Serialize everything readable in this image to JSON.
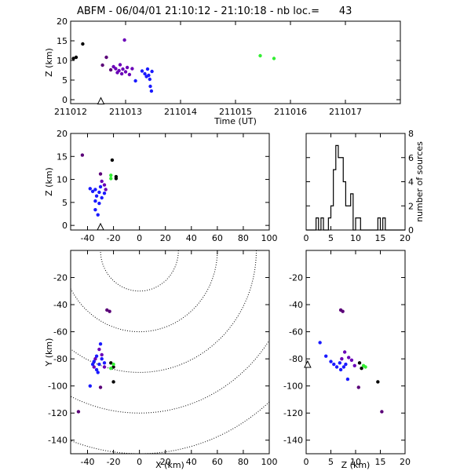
{
  "title": "ABFM - 06/04/01 21:10:12 - 21:10:18 - nb loc.=      43",
  "colors": {
    "earliest": "#000000",
    "early": "#5a0078",
    "middle": "#6a00b8",
    "late": "#1a1aff",
    "latest": "#33ee33"
  },
  "chart_data": [
    {
      "type": "scatter",
      "name": "time-height",
      "xlabel": "Time (UT)",
      "ylabel": "Z (km)",
      "xlim": [
        211012,
        211018
      ],
      "ylim": [
        -1,
        20
      ],
      "xticks": [
        211012,
        211013,
        211014,
        211015,
        211016,
        211017
      ],
      "yticks": [
        0,
        5,
        10,
        15,
        20
      ],
      "station_marker": {
        "x": 211012.55,
        "y": -0.3
      },
      "points": [
        {
          "x": 211012.05,
          "y": 10.5,
          "c": "earliest"
        },
        {
          "x": 211012.1,
          "y": 10.8,
          "c": "earliest"
        },
        {
          "x": 211012.22,
          "y": 14.2,
          "c": "earliest"
        },
        {
          "x": 211012.58,
          "y": 8.8,
          "c": "early"
        },
        {
          "x": 211012.65,
          "y": 10.8,
          "c": "early"
        },
        {
          "x": 211012.73,
          "y": 7.6,
          "c": "early"
        },
        {
          "x": 211012.78,
          "y": 8.4,
          "c": "middle"
        },
        {
          "x": 211012.82,
          "y": 7.9,
          "c": "middle"
        },
        {
          "x": 211012.85,
          "y": 6.9,
          "c": "middle"
        },
        {
          "x": 211012.88,
          "y": 7.4,
          "c": "middle"
        },
        {
          "x": 211012.9,
          "y": 8.9,
          "c": "middle"
        },
        {
          "x": 211012.93,
          "y": 6.6,
          "c": "middle"
        },
        {
          "x": 211012.95,
          "y": 7.8,
          "c": "middle"
        },
        {
          "x": 211012.98,
          "y": 15.2,
          "c": "middle"
        },
        {
          "x": 211013.0,
          "y": 7.1,
          "c": "middle"
        },
        {
          "x": 211013.03,
          "y": 8.2,
          "c": "middle"
        },
        {
          "x": 211013.07,
          "y": 6.4,
          "c": "middle"
        },
        {
          "x": 211013.12,
          "y": 7.9,
          "c": "middle"
        },
        {
          "x": 211013.18,
          "y": 4.8,
          "c": "late"
        },
        {
          "x": 211013.3,
          "y": 7.3,
          "c": "late"
        },
        {
          "x": 211013.35,
          "y": 6.6,
          "c": "late"
        },
        {
          "x": 211013.38,
          "y": 5.9,
          "c": "late"
        },
        {
          "x": 211013.4,
          "y": 7.8,
          "c": "late"
        },
        {
          "x": 211013.42,
          "y": 6.2,
          "c": "late"
        },
        {
          "x": 211013.44,
          "y": 5.2,
          "c": "late"
        },
        {
          "x": 211013.45,
          "y": 3.4,
          "c": "late"
        },
        {
          "x": 211013.47,
          "y": 2.2,
          "c": "late"
        },
        {
          "x": 211013.48,
          "y": 7.2,
          "c": "late"
        },
        {
          "x": 211015.45,
          "y": 11.2,
          "c": "latest"
        },
        {
          "x": 211015.7,
          "y": 10.5,
          "c": "latest"
        }
      ]
    },
    {
      "type": "scatter",
      "name": "x-height",
      "xlabel": "",
      "ylabel": "Z (km)",
      "xlim": [
        -53,
        100
      ],
      "ylim": [
        -1,
        20
      ],
      "xticks": [
        -40,
        -20,
        0,
        20,
        40,
        60,
        80,
        100
      ],
      "yticks": [
        0,
        5,
        10,
        15,
        20
      ],
      "station_marker": {
        "x": -30,
        "y": -0.3
      },
      "points": [
        {
          "x": -21,
          "y": 14.2,
          "c": "earliest"
        },
        {
          "x": -18,
          "y": 10.6,
          "c": "earliest"
        },
        {
          "x": -18,
          "y": 10.2,
          "c": "earliest"
        },
        {
          "x": -44,
          "y": 15.3,
          "c": "early"
        },
        {
          "x": -30,
          "y": 11.2,
          "c": "early"
        },
        {
          "x": -27,
          "y": 8.8,
          "c": "middle"
        },
        {
          "x": -38,
          "y": 8.0,
          "c": "late"
        },
        {
          "x": -36,
          "y": 7.4,
          "c": "late"
        },
        {
          "x": -34,
          "y": 7.8,
          "c": "late"
        },
        {
          "x": -33,
          "y": 6.4,
          "c": "late"
        },
        {
          "x": -31,
          "y": 7.2,
          "c": "late"
        },
        {
          "x": -30,
          "y": 8.4,
          "c": "late"
        },
        {
          "x": -29,
          "y": 6.0,
          "c": "late"
        },
        {
          "x": -27,
          "y": 7.0,
          "c": "late"
        },
        {
          "x": -34,
          "y": 5.3,
          "c": "late"
        },
        {
          "x": -31,
          "y": 4.8,
          "c": "late"
        },
        {
          "x": -34,
          "y": 3.4,
          "c": "late"
        },
        {
          "x": -32,
          "y": 2.3,
          "c": "late"
        },
        {
          "x": -26,
          "y": 7.8,
          "c": "middle"
        },
        {
          "x": -29,
          "y": 9.6,
          "c": "middle"
        },
        {
          "x": -22,
          "y": 10.9,
          "c": "latest"
        },
        {
          "x": -22,
          "y": 10.2,
          "c": "latest"
        }
      ]
    },
    {
      "type": "bar",
      "name": "histogram",
      "xlabel": "",
      "ylabel": "number of sources",
      "xlim": [
        0,
        20
      ],
      "ylim": [
        0,
        8
      ],
      "xticks": [
        0,
        5,
        10,
        15,
        20
      ],
      "yticks": [
        0,
        2,
        4,
        6,
        8
      ],
      "bin_width": 0.5,
      "bin_edges_start": 0,
      "counts": [
        0,
        0,
        0,
        0,
        1,
        0,
        1,
        0,
        0,
        1,
        2,
        5,
        7,
        6,
        6,
        4,
        2,
        2,
        3,
        0,
        1,
        1,
        0,
        0,
        0,
        0,
        0,
        0,
        0,
        1,
        0,
        1,
        0,
        0,
        0,
        0,
        0,
        0,
        0,
        0
      ]
    },
    {
      "type": "scatter",
      "name": "plan-view",
      "xlabel": "X (km)",
      "ylabel": "Y (km)",
      "xlim": [
        -53,
        100
      ],
      "ylim": [
        -150,
        0
      ],
      "xticks": [
        -40,
        -20,
        0,
        20,
        40,
        60,
        80,
        100
      ],
      "yticks": [
        -20,
        -40,
        -60,
        -80,
        -100,
        -120,
        -140
      ],
      "range_rings": {
        "center_x": 0,
        "center_y": 0,
        "radii_km": [
          30,
          60,
          90,
          120,
          150
        ]
      },
      "points": [
        {
          "x": -22,
          "y": -83,
          "c": "earliest"
        },
        {
          "x": -20,
          "y": -86,
          "c": "earliest"
        },
        {
          "x": -20,
          "y": -97,
          "c": "earliest"
        },
        {
          "x": -25,
          "y": -44,
          "c": "early"
        },
        {
          "x": -23,
          "y": -45,
          "c": "early"
        },
        {
          "x": -47,
          "y": -119,
          "c": "early"
        },
        {
          "x": -30,
          "y": -101,
          "c": "early"
        },
        {
          "x": -29,
          "y": -77,
          "c": "middle"
        },
        {
          "x": -31,
          "y": -73,
          "c": "middle"
        },
        {
          "x": -34,
          "y": -80,
          "c": "middle"
        },
        {
          "x": -27,
          "y": -86,
          "c": "middle"
        },
        {
          "x": -35,
          "y": -86,
          "c": "middle"
        },
        {
          "x": -33,
          "y": -78,
          "c": "late"
        },
        {
          "x": -35,
          "y": -82,
          "c": "late"
        },
        {
          "x": -31,
          "y": -84,
          "c": "late"
        },
        {
          "x": -29,
          "y": -80,
          "c": "late"
        },
        {
          "x": -33,
          "y": -88,
          "c": "late"
        },
        {
          "x": -30,
          "y": -69,
          "c": "late"
        },
        {
          "x": -27,
          "y": -83,
          "c": "late"
        },
        {
          "x": -32,
          "y": -90,
          "c": "late"
        },
        {
          "x": -38,
          "y": -100,
          "c": "late"
        },
        {
          "x": -36,
          "y": -84,
          "c": "late"
        },
        {
          "x": -22,
          "y": -87,
          "c": "latest"
        },
        {
          "x": -20,
          "y": -84,
          "c": "latest"
        }
      ]
    },
    {
      "type": "scatter",
      "name": "z-plan",
      "xlabel": "Z (km)",
      "ylabel": "",
      "xlim": [
        0,
        20
      ],
      "ylim": [
        -150,
        0
      ],
      "xticks": [
        0,
        5,
        10,
        15,
        20
      ],
      "yticks": [
        -20,
        -40,
        -60,
        -80,
        -100,
        -120,
        -140
      ],
      "station_marker": {
        "x": 0.3,
        "y": -84
      },
      "points": [
        {
          "x": 10.8,
          "y": -83,
          "c": "earliest"
        },
        {
          "x": 11.2,
          "y": -87,
          "c": "earliest"
        },
        {
          "x": 14.5,
          "y": -97,
          "c": "earliest"
        },
        {
          "x": 7.0,
          "y": -44,
          "c": "early"
        },
        {
          "x": 7.4,
          "y": -45,
          "c": "early"
        },
        {
          "x": 15.3,
          "y": -119,
          "c": "early"
        },
        {
          "x": 10.6,
          "y": -101,
          "c": "early"
        },
        {
          "x": 7.8,
          "y": -75,
          "c": "middle"
        },
        {
          "x": 8.6,
          "y": -79,
          "c": "middle"
        },
        {
          "x": 9.2,
          "y": -81,
          "c": "middle"
        },
        {
          "x": 7.2,
          "y": -80,
          "c": "middle"
        },
        {
          "x": 9.8,
          "y": -85,
          "c": "middle"
        },
        {
          "x": 2.8,
          "y": -68,
          "c": "late"
        },
        {
          "x": 4.0,
          "y": -78,
          "c": "late"
        },
        {
          "x": 5.0,
          "y": -82,
          "c": "late"
        },
        {
          "x": 5.6,
          "y": -84,
          "c": "late"
        },
        {
          "x": 6.2,
          "y": -86,
          "c": "late"
        },
        {
          "x": 6.8,
          "y": -83,
          "c": "late"
        },
        {
          "x": 7.0,
          "y": -88,
          "c": "late"
        },
        {
          "x": 7.6,
          "y": -86,
          "c": "late"
        },
        {
          "x": 8.0,
          "y": -84,
          "c": "late"
        },
        {
          "x": 8.4,
          "y": -95,
          "c": "late"
        },
        {
          "x": 11.6,
          "y": -85,
          "c": "latest"
        },
        {
          "x": 12.0,
          "y": -86,
          "c": "latest"
        }
      ]
    }
  ]
}
